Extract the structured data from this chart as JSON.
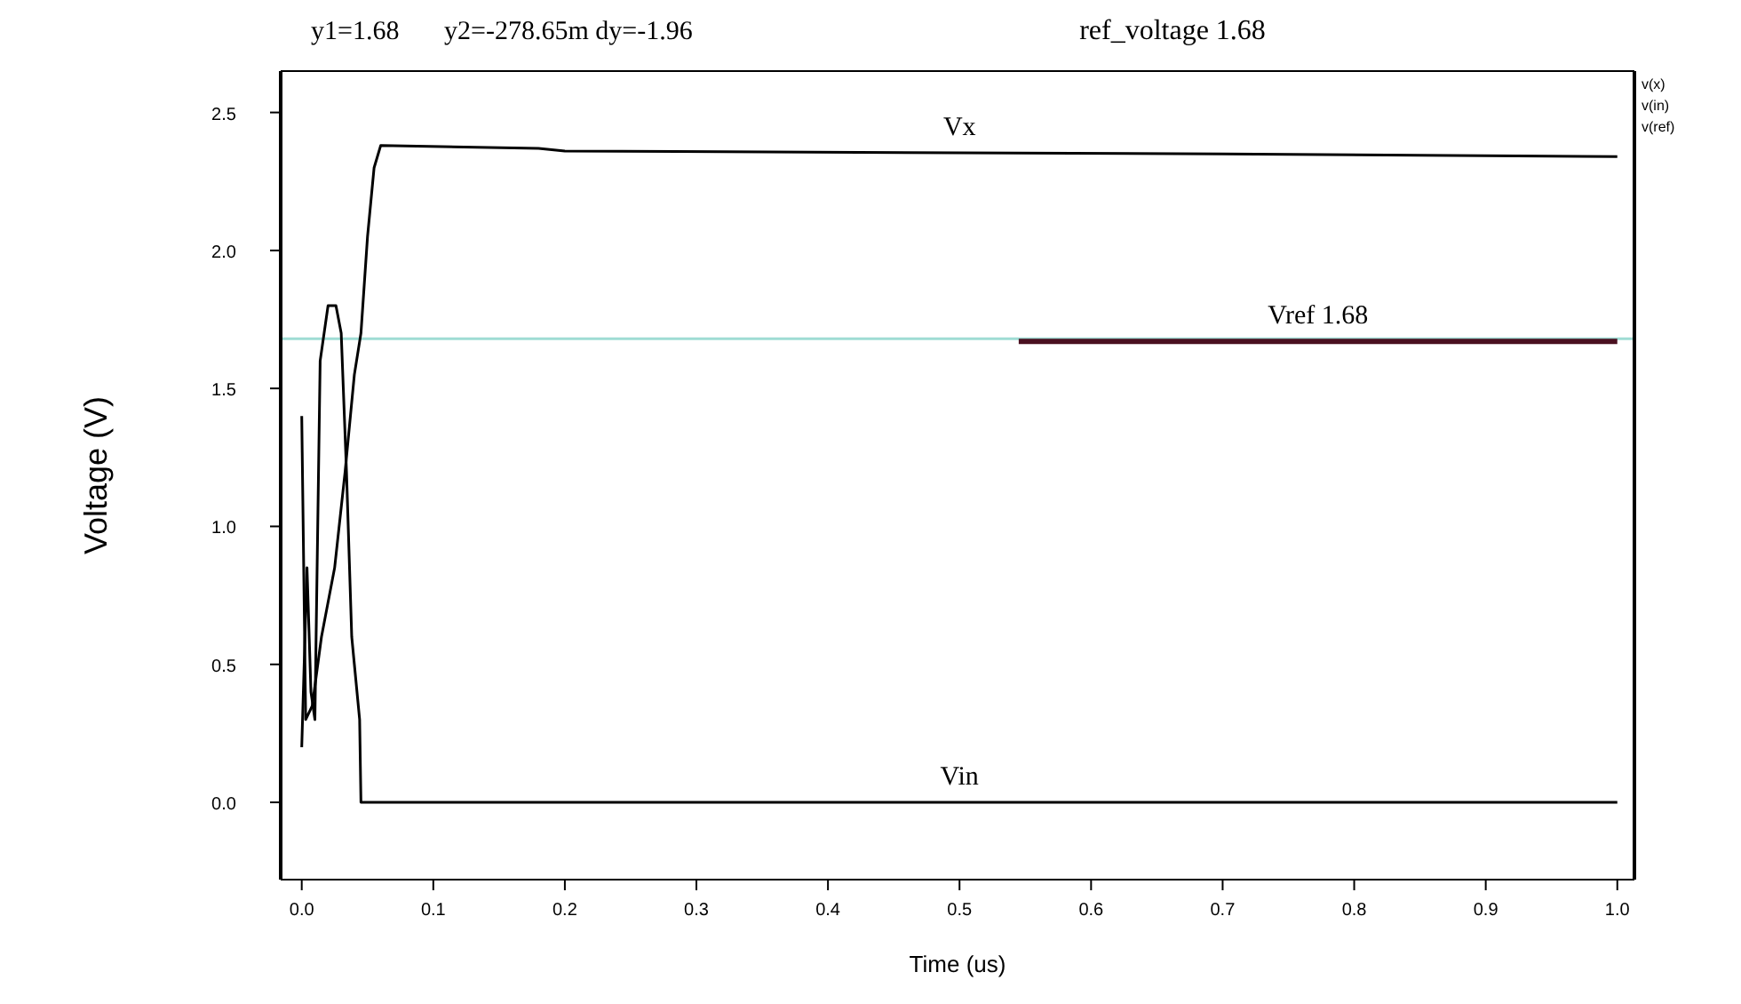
{
  "chart_data": {
    "type": "line",
    "title": "ref_voltage 1.68",
    "xlabel": "Time (us)",
    "ylabel": "Voltage (V)",
    "annotations": [
      "y1=1.68",
      "y2=-278.65m dy=-1.96",
      "v(x)",
      "v(in)",
      "v(ref)"
    ],
    "xlim": [
      -0.016,
      1.013
    ],
    "ylim": [
      -0.28,
      2.65
    ],
    "xticks": [
      {
        "value": 0,
        "label": "0.0"
      },
      {
        "value": 0.1,
        "label": "0.1"
      },
      {
        "value": 0.2,
        "label": "0.2"
      },
      {
        "value": 0.3,
        "label": "0.3"
      },
      {
        "value": 0.4,
        "label": "0.4"
      },
      {
        "value": 0.5,
        "label": "0.5"
      },
      {
        "value": 0.6,
        "label": "0.6"
      },
      {
        "value": 0.7,
        "label": "0.7"
      },
      {
        "value": 0.8,
        "label": "0.8"
      },
      {
        "value": 0.9,
        "label": "0.9"
      },
      {
        "value": 1,
        "label": "1.0"
      }
    ],
    "yticks": [
      {
        "value": 0,
        "label": "0.0"
      },
      {
        "value": 0.5,
        "label": "0.5"
      },
      {
        "value": 1,
        "label": "1.0"
      },
      {
        "value": 1.5,
        "label": "1.5"
      },
      {
        "value": 2,
        "label": "2.0"
      },
      {
        "value": 2.5,
        "label": "2.5"
      }
    ],
    "grid": false,
    "line_style": "solid",
    "marker": "none",
    "ref_lines": [
      {
        "axis": "y",
        "value": 1.68,
        "color": "#9fdcd4"
      }
    ],
    "series": [
      {
        "name": "Vx",
        "color": "#000000",
        "x": [
          0,
          0.003,
          0.008,
          0.015,
          0.025,
          0.033,
          0.04,
          0.045,
          0.05,
          0.055,
          0.06,
          0.18,
          0.2,
          0.7,
          1.0
        ],
        "values": [
          1.4,
          0.3,
          0.35,
          0.6,
          0.85,
          1.2,
          1.55,
          1.7,
          2.05,
          2.3,
          2.38,
          2.37,
          2.36,
          2.35,
          2.34
        ]
      },
      {
        "name": "Vin",
        "color": "#000000",
        "x": [
          0,
          0.004,
          0.007,
          0.01,
          0.014,
          0.02,
          0.026,
          0.03,
          0.034,
          0.038,
          0.04,
          0.044,
          0.045,
          0.3,
          0.6,
          1.0
        ],
        "values": [
          0.2,
          0.85,
          0.4,
          0.3,
          1.6,
          1.8,
          1.8,
          1.7,
          1.2,
          0.6,
          0.5,
          0.3,
          0,
          0,
          0,
          0
        ]
      },
      {
        "name": "Vref 1.68",
        "color": "#4a1020",
        "x": [
          0.545,
          0.7,
          1.0
        ],
        "values": [
          1.67,
          1.67,
          1.67
        ]
      }
    ]
  }
}
